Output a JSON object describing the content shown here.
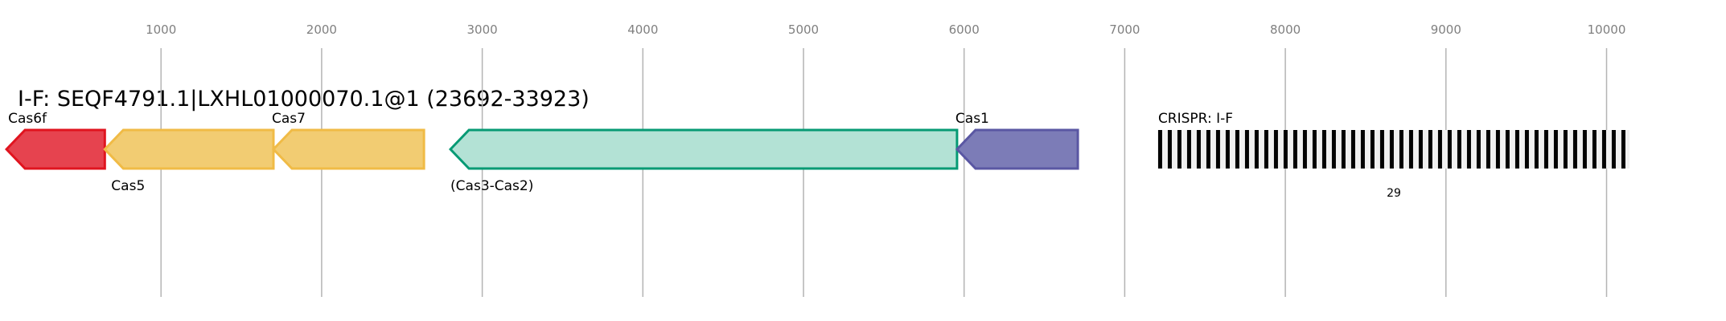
{
  "title": "I-F: SEQF4791.1|LXHL01000070.1@1 (23692-33923)",
  "axis": {
    "ticks": [
      1000,
      2000,
      3000,
      4000,
      5000,
      6000,
      7000,
      8000,
      9000,
      10000
    ],
    "grid": true
  },
  "genes": [
    {
      "name": "Cas6f",
      "start": 38,
      "end": 650,
      "strand": "-",
      "fill": "#e6434f",
      "stroke": "#e0141f",
      "label_pos": "top"
    },
    {
      "name": "Cas5",
      "start": 650,
      "end": 1700,
      "strand": "-",
      "fill": "#f2cc72",
      "stroke": "#f0bb46",
      "label_pos": "bottom"
    },
    {
      "name": "Cas7",
      "start": 1700,
      "end": 2637,
      "strand": "-",
      "fill": "#f2cc72",
      "stroke": "#f0bb46",
      "label_pos": "top"
    },
    {
      "name": "(Cas3-Cas2)",
      "start": 2802,
      "end": 5956,
      "strand": "-",
      "fill": "#b3e2d5",
      "stroke": "#069a74",
      "label_pos": "bottom"
    },
    {
      "name": "Cas1",
      "start": 5956,
      "end": 6708,
      "strand": "-",
      "fill": "#7c7cb7",
      "stroke": "#5a57a3",
      "label_pos": "top"
    }
  ],
  "crispr": {
    "label": "CRISPR: I-F",
    "start": 7208,
    "end": 10143,
    "spacer_count_label": "29",
    "repeat_color": "#000000",
    "spacer_color": "#f0f0f0"
  }
}
